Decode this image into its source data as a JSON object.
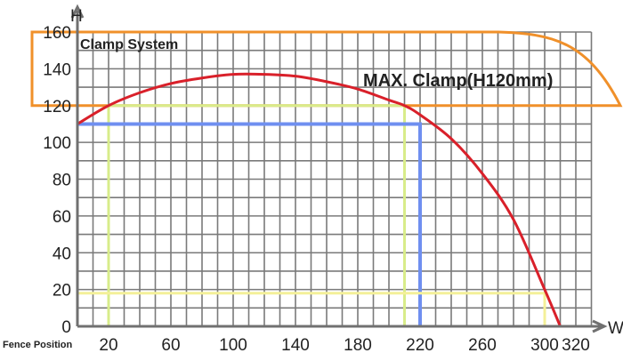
{
  "chart_data": {
    "type": "line",
    "title": "",
    "xlabel": "W",
    "ylabel": "H",
    "x_axis_caption": "Fence Position",
    "xlim": [
      0,
      330
    ],
    "ylim": [
      0,
      160
    ],
    "grid": true,
    "x_ticks": [
      20,
      60,
      100,
      140,
      180,
      220,
      260,
      300,
      320
    ],
    "y_ticks": [
      0,
      20,
      40,
      60,
      80,
      100,
      120,
      140,
      160
    ],
    "annotations": {
      "clamp_system": "Clamp System",
      "max_clamp": "MAX. Clamp(H120mm)"
    },
    "series": [
      {
        "kind": "curve",
        "color": "#d9202a",
        "x": [
          0,
          20,
          40,
          60,
          80,
          100,
          120,
          140,
          160,
          180,
          200,
          210,
          220,
          240,
          260,
          280,
          300,
          310
        ],
        "y": [
          110,
          120,
          127,
          132,
          135,
          137,
          137,
          136,
          133,
          129,
          123,
          120,
          115,
          102,
          83,
          58,
          20,
          0
        ]
      },
      {
        "kind": "rectangle",
        "color": "#d8ec8a",
        "x": [
          20,
          20,
          210,
          210
        ],
        "y": [
          0,
          120,
          120,
          0
        ]
      },
      {
        "kind": "rectangle",
        "color": "#6f8ff0",
        "x": [
          0,
          220,
          220
        ],
        "y": [
          110,
          110,
          0
        ]
      },
      {
        "kind": "rectangle",
        "color": "#f4f098",
        "x": [
          0,
          300,
          300
        ],
        "y": [
          18,
          18,
          0
        ]
      }
    ],
    "clamp_region": {
      "color": "#f0902a",
      "y_range": [
        120,
        160
      ]
    }
  }
}
